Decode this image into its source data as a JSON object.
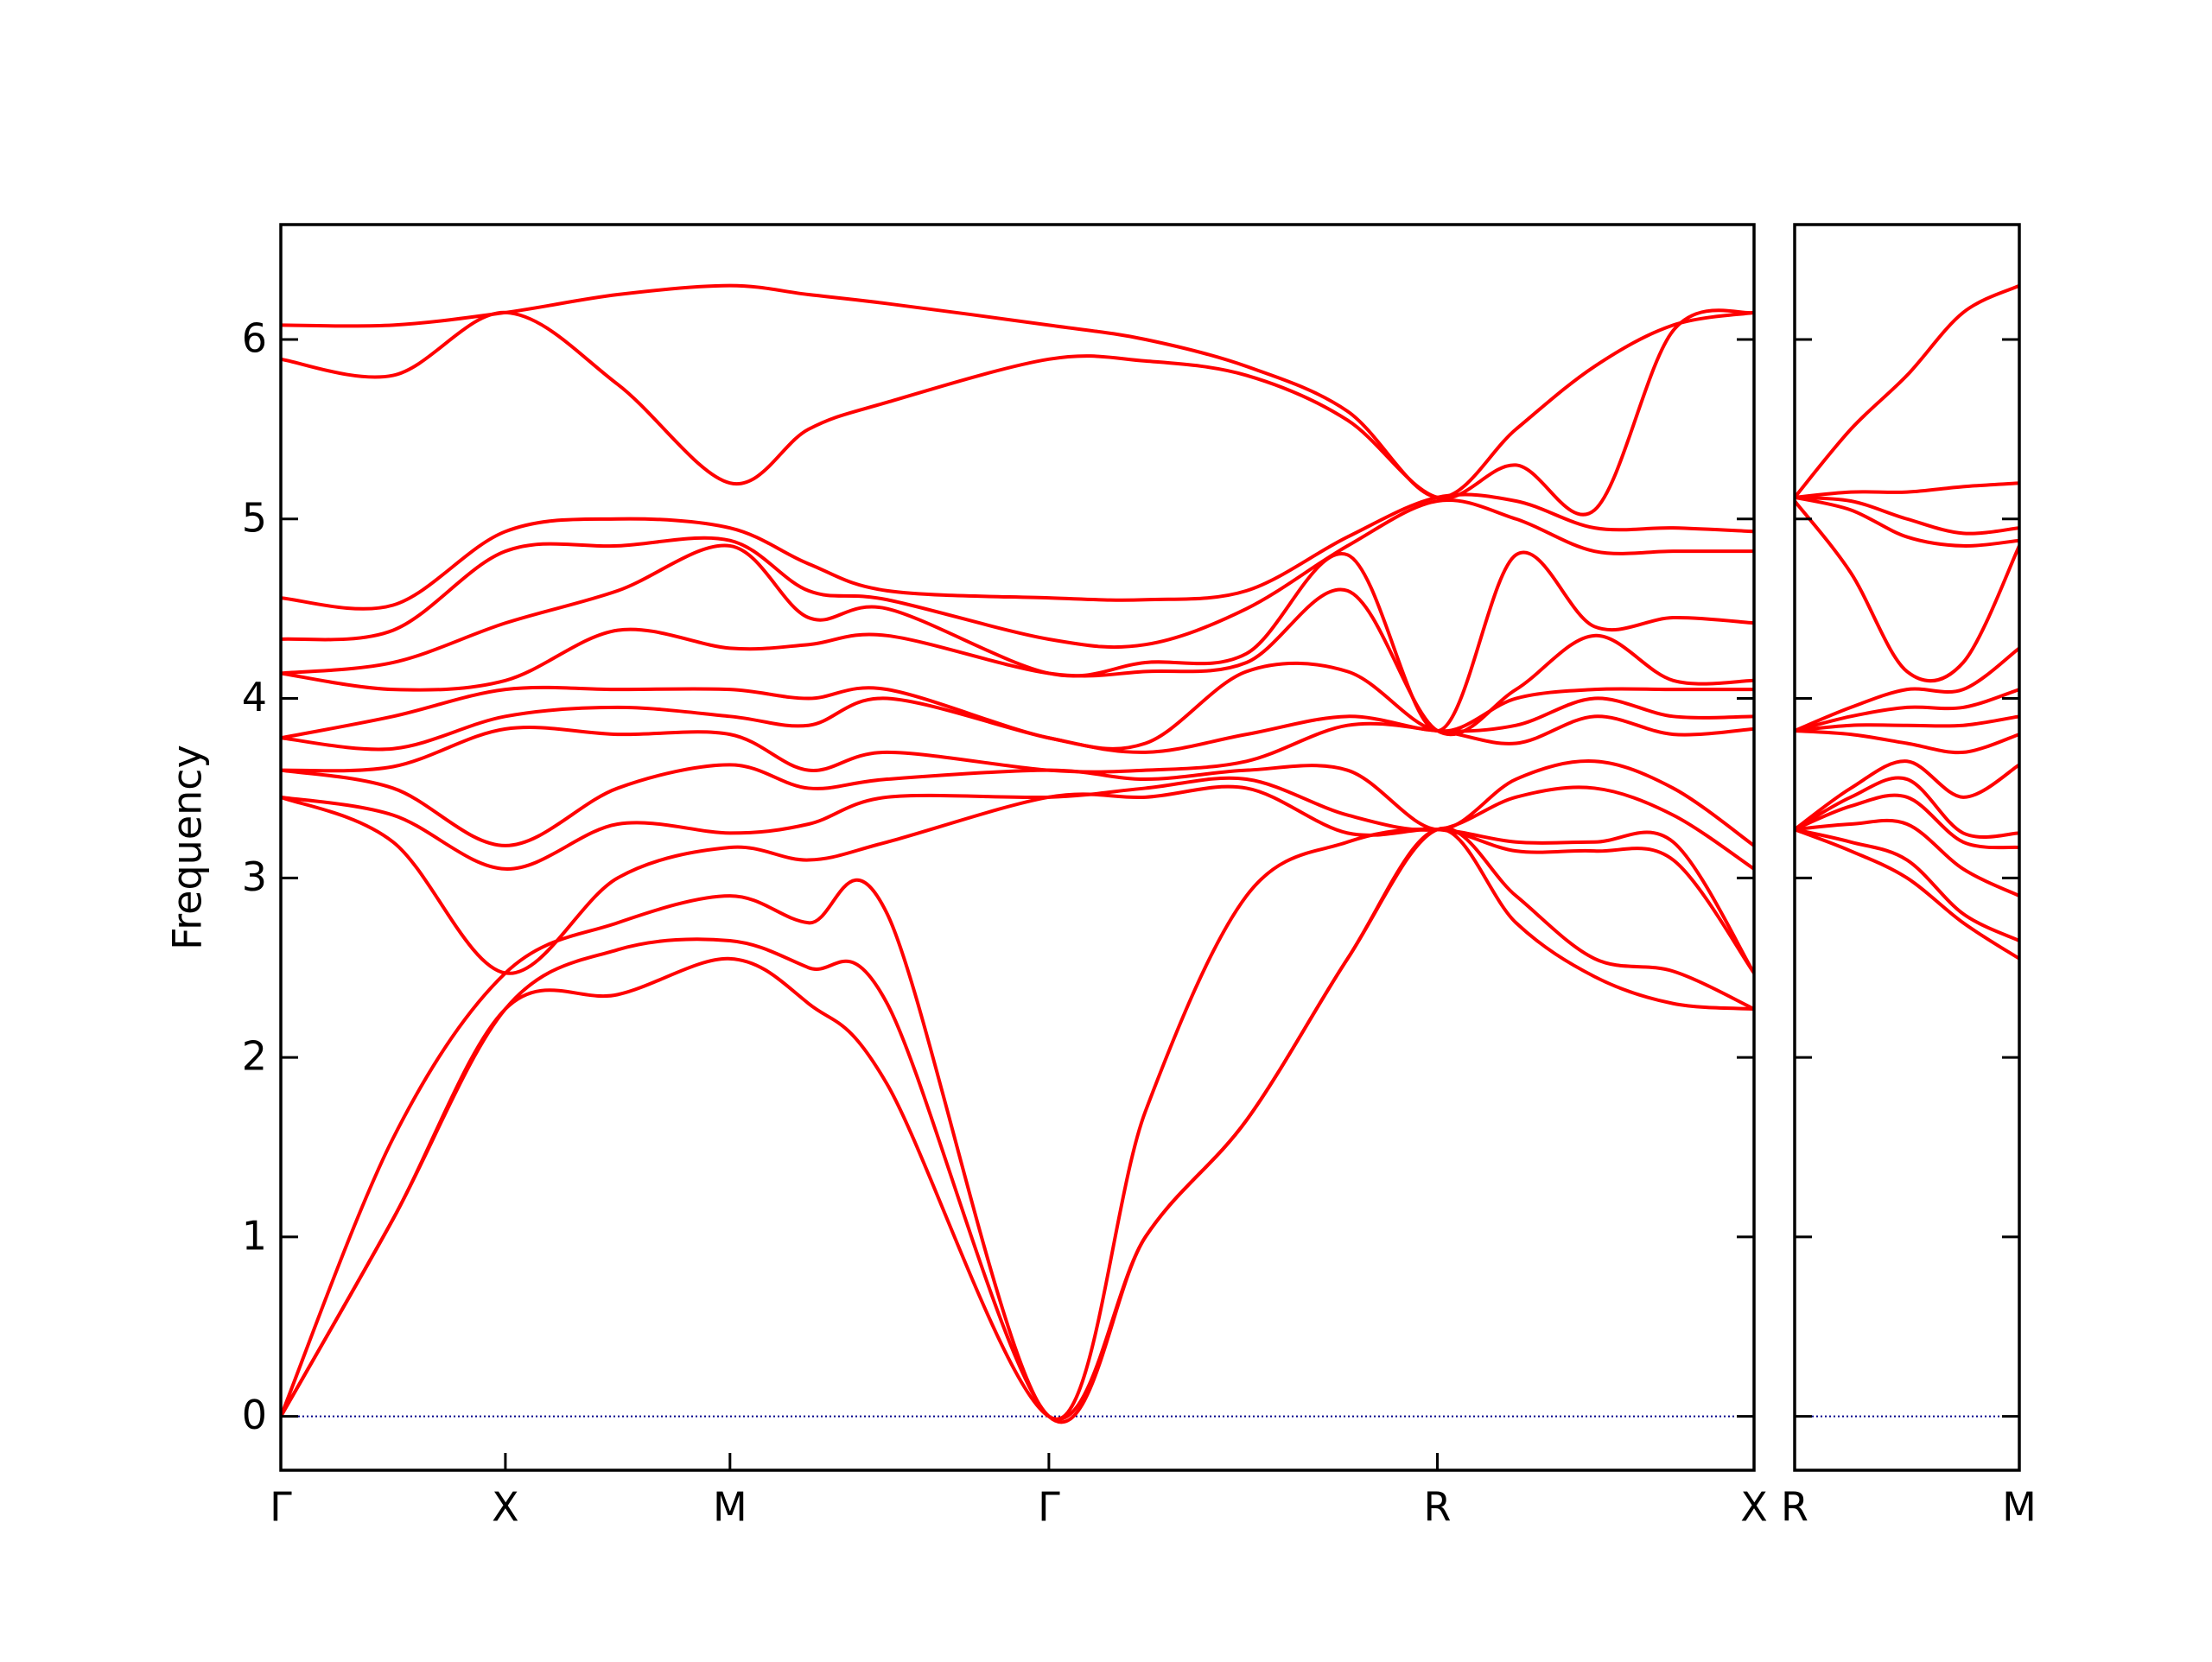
{
  "chart_data": [
    {
      "type": "line",
      "ylabel": "Frequency",
      "color": "#ff0000",
      "show_ytick_labels": true,
      "zero_line": {
        "value": 0,
        "color": "#00008b"
      },
      "xlim": [
        0,
        6.56
      ],
      "ylim": [
        -0.3,
        6.64
      ],
      "xticks": [
        {
          "value": 0,
          "label": "Γ"
        },
        {
          "value": 1,
          "label": "X"
        },
        {
          "value": 2,
          "label": "M"
        },
        {
          "value": 3.42,
          "label": "Γ"
        },
        {
          "value": 5.15,
          "label": "R"
        },
        {
          "value": 6.56,
          "label": "X"
        }
      ],
      "yticks": [
        0,
        1,
        2,
        3,
        4,
        5,
        6
      ],
      "x": [
        0,
        0.5,
        1,
        1.5,
        2,
        2.35,
        2.7,
        3.42,
        3.85,
        4.3,
        4.75,
        5.15,
        5.5,
        5.85,
        6.2,
        6.56
      ],
      "series": [
        {
          "values": [
            0,
            1.1,
            2.27,
            2.35,
            2.55,
            2.3,
            1.85,
            0,
            1.0,
            1.65,
            2.55,
            3.27,
            2.75,
            2.45,
            2.3,
            2.27
          ]
        },
        {
          "values": [
            0,
            1.1,
            2.27,
            2.6,
            2.65,
            2.5,
            2.3,
            0,
            1.0,
            1.65,
            2.55,
            3.27,
            2.9,
            2.55,
            2.48,
            2.27
          ]
        },
        {
          "values": [
            0,
            1.55,
            2.47,
            2.75,
            2.9,
            2.75,
            2.8,
            0,
            1.7,
            2.9,
            3.2,
            3.27,
            3.15,
            3.15,
            3.1,
            2.47
          ]
        },
        {
          "values": [
            3.45,
            3.2,
            2.47,
            3.0,
            3.17,
            3.1,
            3.2,
            3.45,
            3.45,
            3.5,
            3.25,
            3.27,
            3.2,
            3.2,
            3.2,
            2.47
          ]
        },
        {
          "values": [
            3.45,
            3.35,
            3.05,
            3.3,
            3.25,
            3.3,
            3.45,
            3.45,
            3.5,
            3.55,
            3.35,
            3.27,
            3.45,
            3.5,
            3.35,
            3.05
          ]
        },
        {
          "values": [
            3.6,
            3.5,
            3.18,
            3.5,
            3.63,
            3.5,
            3.55,
            3.6,
            3.55,
            3.6,
            3.6,
            3.27,
            3.55,
            3.65,
            3.5,
            3.18
          ]
        },
        {
          "values": [
            3.6,
            3.62,
            3.83,
            3.8,
            3.8,
            3.6,
            3.7,
            3.6,
            3.6,
            3.65,
            3.85,
            3.82,
            3.75,
            3.9,
            3.8,
            3.83
          ]
        },
        {
          "values": [
            3.78,
            3.72,
            3.9,
            3.95,
            3.9,
            3.85,
            4.0,
            3.78,
            3.7,
            3.8,
            3.9,
            3.82,
            3.85,
            4.0,
            3.9,
            3.9
          ]
        },
        {
          "values": [
            3.78,
            3.9,
            4.05,
            4.05,
            4.05,
            4.0,
            4.05,
            3.78,
            3.75,
            4.15,
            4.15,
            3.82,
            4.0,
            4.05,
            4.05,
            4.05
          ]
        },
        {
          "values": [
            4.14,
            4.05,
            4.1,
            4.38,
            4.28,
            4.3,
            4.35,
            4.14,
            4.15,
            4.2,
            4.6,
            3.82,
            4.05,
            4.35,
            4.1,
            4.1
          ]
        },
        {
          "values": [
            4.14,
            4.2,
            4.42,
            4.6,
            4.85,
            4.45,
            4.5,
            4.14,
            4.2,
            4.25,
            4.8,
            3.82,
            4.8,
            4.4,
            4.45,
            4.42
          ]
        },
        {
          "values": [
            4.33,
            4.38,
            4.82,
            4.85,
            4.88,
            4.6,
            4.55,
            4.33,
            4.3,
            4.5,
            4.85,
            5.1,
            5.0,
            4.82,
            4.82,
            4.82
          ]
        },
        {
          "values": [
            4.56,
            4.52,
            4.93,
            5.0,
            4.95,
            4.75,
            4.6,
            4.56,
            4.55,
            4.6,
            4.9,
            5.12,
            5.1,
            4.95,
            4.95,
            4.93
          ]
        },
        {
          "values": [
            5.89,
            5.8,
            6.15,
            5.75,
            5.2,
            5.5,
            5.65,
            5.89,
            5.88,
            5.8,
            5.55,
            5.12,
            5.3,
            5.05,
            6.05,
            6.15
          ]
        },
        {
          "values": [
            6.08,
            6.08,
            6.15,
            6.25,
            6.3,
            6.25,
            6.2,
            6.08,
            6.0,
            5.85,
            5.6,
            5.12,
            5.5,
            5.85,
            6.08,
            6.15
          ]
        }
      ]
    },
    {
      "type": "line",
      "color": "#ff0000",
      "show_ytick_labels": false,
      "zero_line": {
        "value": 0,
        "color": "#00008b"
      },
      "xlim": [
        0,
        1
      ],
      "ylim": [
        -0.3,
        6.64
      ],
      "xticks": [
        {
          "value": 0,
          "label": "R"
        },
        {
          "value": 1,
          "label": "M"
        }
      ],
      "yticks": [
        0,
        1,
        2,
        3,
        4,
        5,
        6
      ],
      "x": [
        0,
        0.25,
        0.5,
        0.75,
        1
      ],
      "series": [
        {
          "values": [
            3.27,
            3.15,
            3.0,
            2.75,
            2.55
          ]
        },
        {
          "values": [
            3.27,
            3.2,
            3.1,
            2.8,
            2.65
          ]
        },
        {
          "values": [
            3.27,
            3.3,
            3.3,
            3.05,
            2.9
          ]
        },
        {
          "values": [
            3.27,
            3.4,
            3.45,
            3.2,
            3.17
          ]
        },
        {
          "values": [
            3.27,
            3.45,
            3.55,
            3.25,
            3.25
          ]
        },
        {
          "values": [
            3.27,
            3.5,
            3.65,
            3.45,
            3.63
          ]
        },
        {
          "values": [
            3.82,
            3.8,
            3.75,
            3.7,
            3.8
          ]
        },
        {
          "values": [
            3.82,
            3.85,
            3.85,
            3.85,
            3.9
          ]
        },
        {
          "values": [
            3.82,
            3.9,
            3.95,
            3.95,
            4.05
          ]
        },
        {
          "values": [
            3.82,
            3.95,
            4.05,
            4.05,
            4.28
          ]
        },
        {
          "values": [
            5.1,
            4.7,
            4.15,
            4.2,
            4.85
          ]
        },
        {
          "values": [
            5.12,
            5.05,
            4.9,
            4.85,
            4.88
          ]
        },
        {
          "values": [
            5.12,
            5.1,
            5.0,
            4.92,
            4.95
          ]
        },
        {
          "values": [
            5.12,
            5.15,
            5.15,
            5.18,
            5.2
          ]
        },
        {
          "values": [
            5.12,
            5.5,
            5.8,
            6.15,
            6.3
          ]
        }
      ]
    }
  ]
}
